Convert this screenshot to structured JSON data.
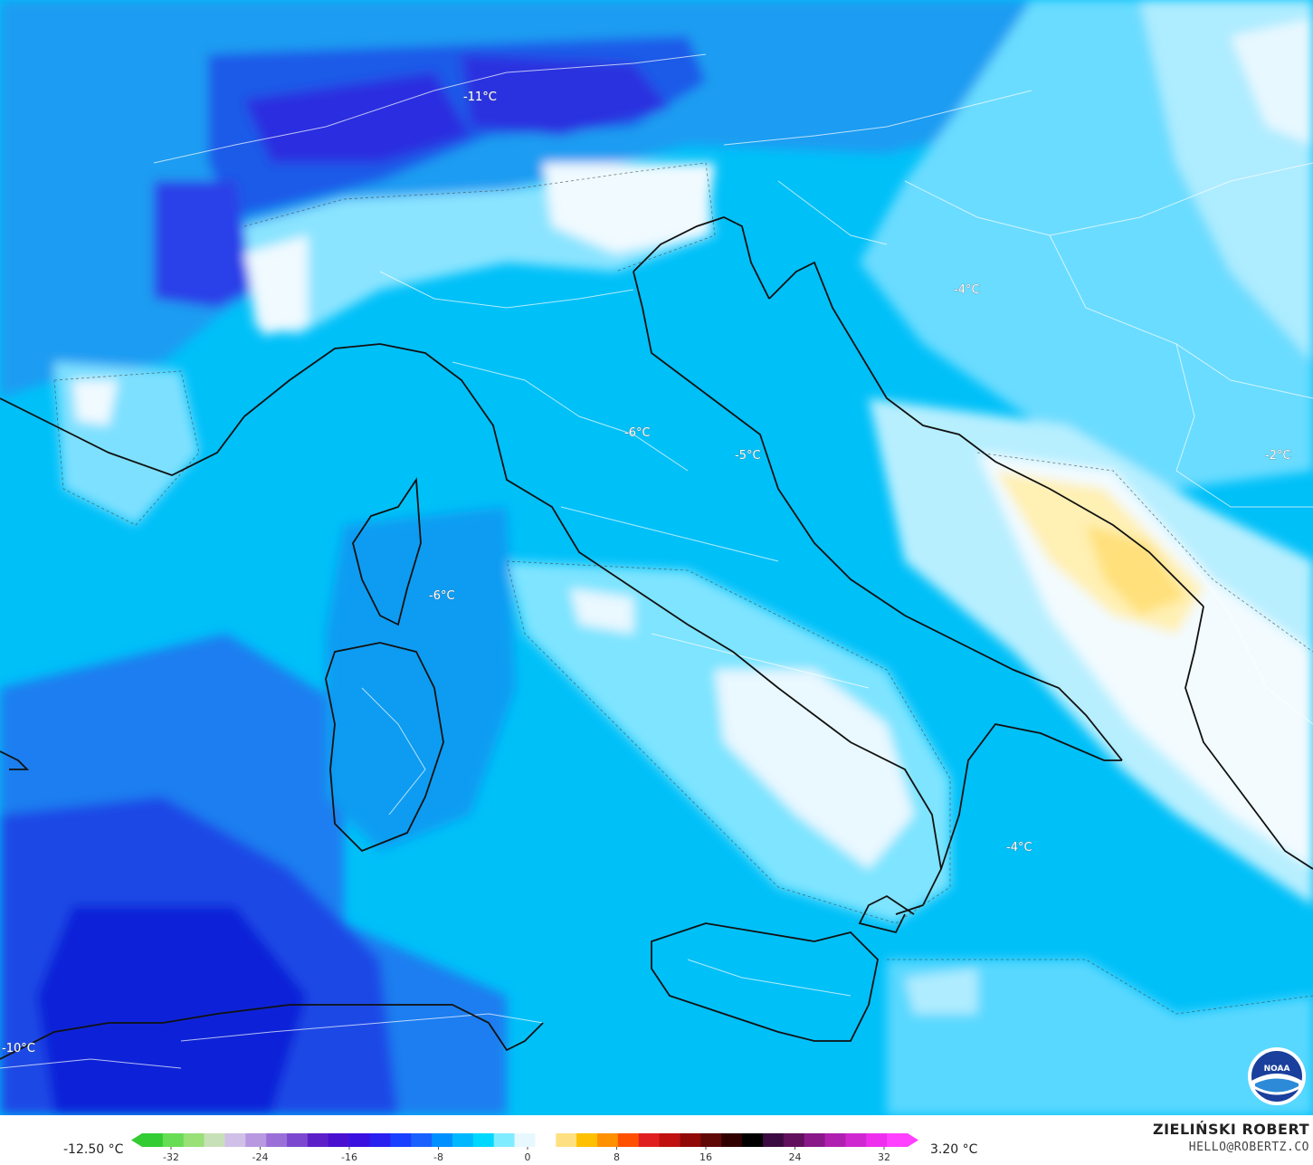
{
  "map": {
    "labels": [
      {
        "text": "-11°C"
      },
      {
        "text": "-4°C"
      },
      {
        "text": "-6°C"
      },
      {
        "text": "-5°C"
      },
      {
        "text": "-6°C"
      },
      {
        "text": "-2°C"
      },
      {
        "text": "-4°C"
      },
      {
        "text": "-10°C"
      }
    ],
    "colors": {
      "deep_blue": "#0b2ee0",
      "royal_blue": "#1a5cf0",
      "mid_blue": "#00b4f5",
      "cyan": "#00ccff",
      "light_cyan": "#66e0ff",
      "pale_cyan": "#b7efff",
      "white": "#f3fbff",
      "pale_yellow": "#fff0b3",
      "yellow": "#ffe07a",
      "borders": "#ffffff",
      "coast": "#111111"
    }
  },
  "legend": {
    "min_label": "-12.50 °C",
    "max_label": "3.20 °C",
    "ticks": [
      "-32",
      "-24",
      "-16",
      "-8",
      "0",
      "8",
      "16",
      "24",
      "32"
    ],
    "colors": [
      "#33cc33",
      "#66dd55",
      "#99e077",
      "#c8e0b8",
      "#d0c0e8",
      "#b898e0",
      "#9a70d8",
      "#7c48d0",
      "#5c20c8",
      "#4a10d0",
      "#3a10e0",
      "#2a20f0",
      "#1a40ff",
      "#1a60ff",
      "#0090ff",
      "#00b8ff",
      "#00d8ff",
      "#80ecff",
      "#e8f8ff",
      "#ffffff",
      "#ffe080",
      "#ffc000",
      "#ff9000",
      "#ff5000",
      "#e02020",
      "#c01010",
      "#900808",
      "#600808",
      "#300000",
      "#000000",
      "#3a0a40",
      "#60105c",
      "#8a1888",
      "#b020b0",
      "#d028d0",
      "#ee30ee",
      "#ff40ff"
    ]
  },
  "credit": {
    "author": "ZIELIŃSKI ROBERT",
    "email": "HELLO@ROBERTZ.CO",
    "logo_text": "NOAA"
  }
}
